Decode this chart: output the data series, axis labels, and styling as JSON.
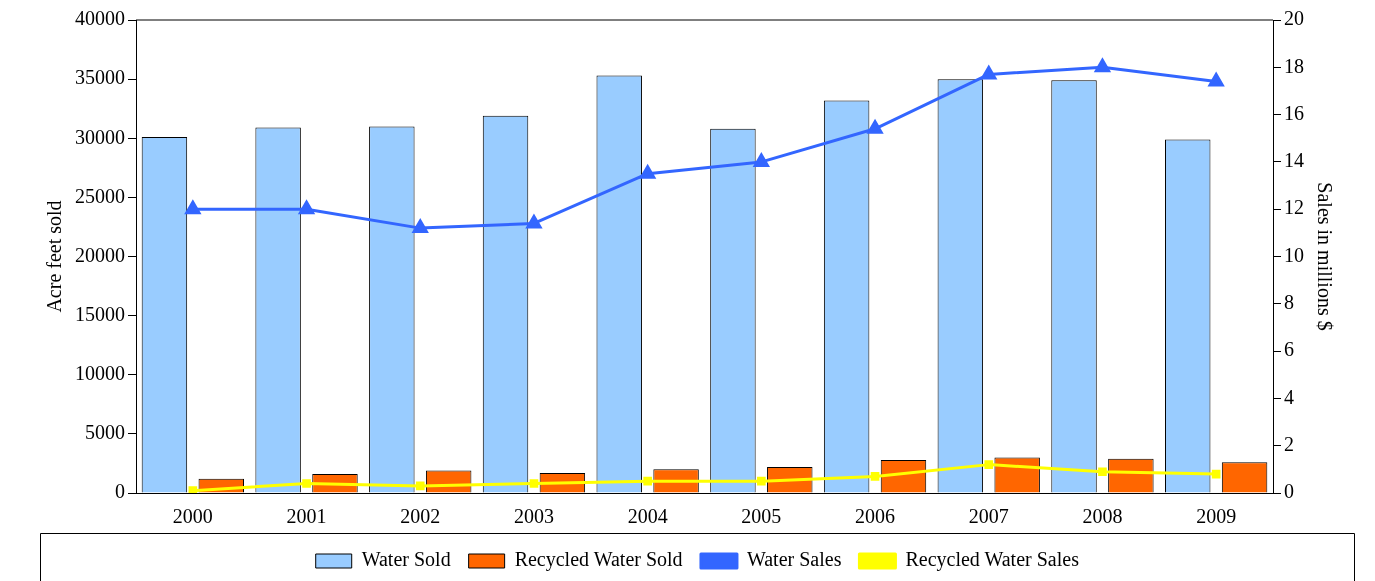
{
  "chart_data": {
    "type": "bar",
    "categories": [
      "2000",
      "2001",
      "2002",
      "2003",
      "2004",
      "2005",
      "2006",
      "2007",
      "2008",
      "2009"
    ],
    "series": [
      {
        "name": "Water Sold",
        "color": "#99ccff",
        "values": [
          30100,
          30900,
          31000,
          31900,
          35300,
          30800,
          33200,
          35000,
          34900,
          29900
        ]
      },
      {
        "name": "Recycled Water Sold",
        "color": "#ff6600",
        "values": [
          1200,
          1600,
          1900,
          1700,
          2000,
          2200,
          2800,
          3000,
          2900,
          2600
        ]
      },
      {
        "name": "Water Sales",
        "type": "line",
        "axis": "y2",
        "color": "#3366ff",
        "marker": "triangle",
        "values": [
          12.0,
          12.0,
          11.2,
          11.4,
          13.5,
          14.0,
          15.4,
          17.7,
          18.0,
          17.4
        ]
      },
      {
        "name": "Recycled Water Sales",
        "type": "line",
        "axis": "y2",
        "color": "#ffff00",
        "marker": "square",
        "values": [
          0.1,
          0.4,
          0.3,
          0.4,
          0.5,
          0.5,
          0.7,
          1.2,
          0.9,
          0.8
        ]
      }
    ],
    "ylabel": "Acre feet sold",
    "y2label": "Sales in millions $",
    "ylim": [
      0,
      40000
    ],
    "yticks": [
      0,
      5000,
      10000,
      15000,
      20000,
      25000,
      30000,
      35000,
      40000
    ],
    "y2lim": [
      0,
      20
    ],
    "y2ticks": [
      0,
      2,
      4,
      6,
      8,
      10,
      12,
      14,
      16,
      18,
      20
    ],
    "grid": false,
    "legend": "bottom"
  }
}
